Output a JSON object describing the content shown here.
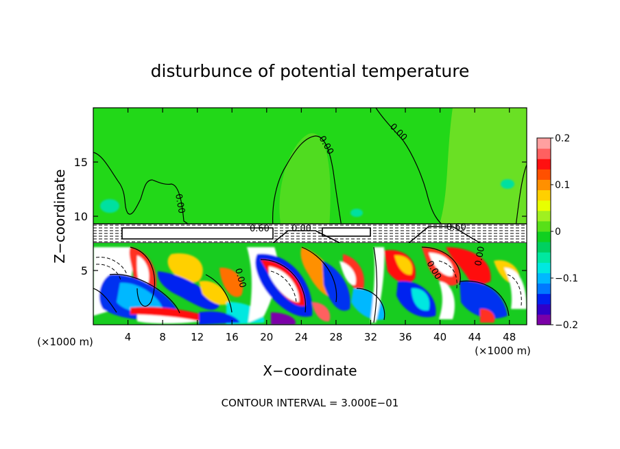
{
  "chart_data": {
    "type": "heatmap",
    "title": "disturbunce of potential temperature",
    "xlabel": "X−coordinate",
    "ylabel": "Z−coordinate",
    "x_unit_left": "(×1000 m)",
    "x_unit_right": "(×1000 m)",
    "footer": "CONTOUR INTERVAL = 3.000E−01",
    "x_range": [
      0,
      50
    ],
    "y_range": [
      0,
      20
    ],
    "x_ticks": [
      4,
      8,
      12,
      16,
      20,
      24,
      28,
      32,
      36,
      40,
      44,
      48
    ],
    "x_tick_labels": [
      "4",
      "8",
      "12",
      "16",
      "20",
      "24",
      "28",
      "32",
      "36",
      "40",
      "44",
      "48"
    ],
    "y_ticks": [
      5,
      10,
      15
    ],
    "y_tick_labels": [
      "5",
      "10",
      "15"
    ],
    "contour_labels": [
      "0.00",
      "0.00",
      "0.00",
      "0.00",
      "0.00",
      "0.60",
      "0.00",
      "0.60",
      "0.00"
    ],
    "colorbar": {
      "range": [
        -0.2,
        0.2
      ],
      "ticks": [
        0.2,
        0.1,
        0,
        -0.1,
        -0.2
      ],
      "tick_labels": [
        "0.2",
        "0.1",
        "0",
        "−0.1",
        "−0.2"
      ],
      "colors": [
        "#7b00a8",
        "#3000c8",
        "#0020f0",
        "#0078ff",
        "#00b8ff",
        "#00e8e0",
        "#00e8a0",
        "#00d060",
        "#10d020",
        "#58e018",
        "#a0f020",
        "#e8ff00",
        "#ffd000",
        "#ff9000",
        "#ff5000",
        "#ff1010",
        "#ff6060",
        "#ffa0a0"
      ]
    }
  }
}
